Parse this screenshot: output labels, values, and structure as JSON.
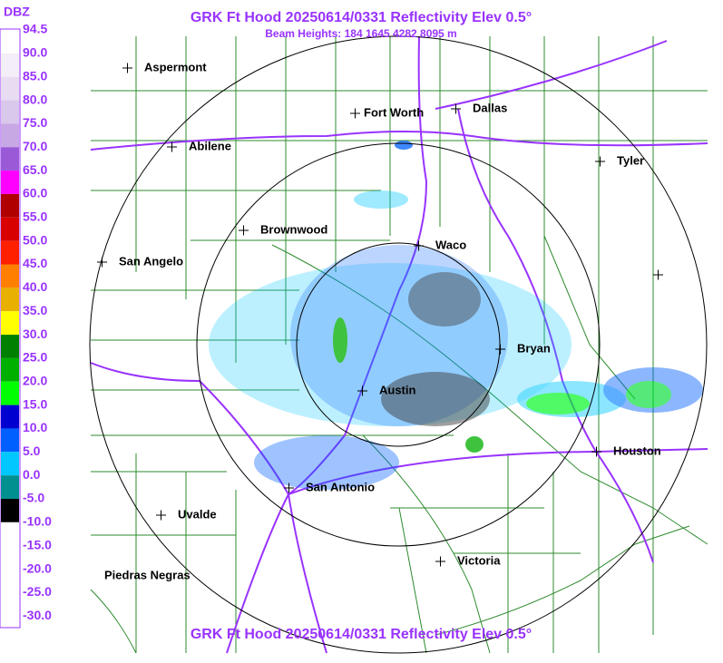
{
  "header": {
    "title": "GRK Ft Hood 20250614/0331 Reflectivity Elev 0.5°",
    "subtitle": "Beam Heights: 184 1645 4282 8095 m",
    "footer": "GRK Ft Hood 20250614/0331 Reflectivity Elev 0.5°"
  },
  "legend": {
    "unit": "DBZ",
    "scale": [
      {
        "label": "94.5",
        "color": "#ffffff"
      },
      {
        "label": "90.0",
        "color": "#f4eef8"
      },
      {
        "label": "85.0",
        "color": "#e8dcf2"
      },
      {
        "label": "80.0",
        "color": "#dac8ec"
      },
      {
        "label": "75.0",
        "color": "#c8a8e4"
      },
      {
        "label": "70.0",
        "color": "#9a5ad8"
      },
      {
        "label": "65.0",
        "color": "#ff00ff"
      },
      {
        "label": "60.0",
        "color": "#b00000"
      },
      {
        "label": "55.0",
        "color": "#d80000"
      },
      {
        "label": "50.0",
        "color": "#ff2000"
      },
      {
        "label": "45.0",
        "color": "#ff8000"
      },
      {
        "label": "40.0",
        "color": "#e8b000"
      },
      {
        "label": "35.0",
        "color": "#ffff00"
      },
      {
        "label": "30.0",
        "color": "#008000"
      },
      {
        "label": "25.0",
        "color": "#00b000"
      },
      {
        "label": "20.0",
        "color": "#00ff00"
      },
      {
        "label": "15.0",
        "color": "#0000d0"
      },
      {
        "label": "10.0",
        "color": "#0060ff"
      },
      {
        "label": "5.0",
        "color": "#00c8ff"
      },
      {
        "label": "0.0",
        "color": "#009090"
      },
      {
        "label": "-5.0",
        "color": "#000000"
      },
      {
        "label": "-10.0",
        "color": "#ffffff"
      },
      {
        "label": "-15.0",
        "color": "#ffffff"
      },
      {
        "label": "-20.0",
        "color": "#ffffff"
      },
      {
        "label": "-25.0",
        "color": "#ffffff"
      },
      {
        "label": "-30.0",
        "color": "#ffffff"
      }
    ]
  },
  "cities": [
    "Aspermont",
    "Fort Worth",
    "Dallas",
    "Abilene",
    "Tyler",
    "Brownwood",
    "Waco",
    "San Angelo",
    "Bryan",
    "Austin",
    "Houston",
    "San Antonio",
    "Uvalde",
    "Victoria",
    "Piedras Negras"
  ]
}
